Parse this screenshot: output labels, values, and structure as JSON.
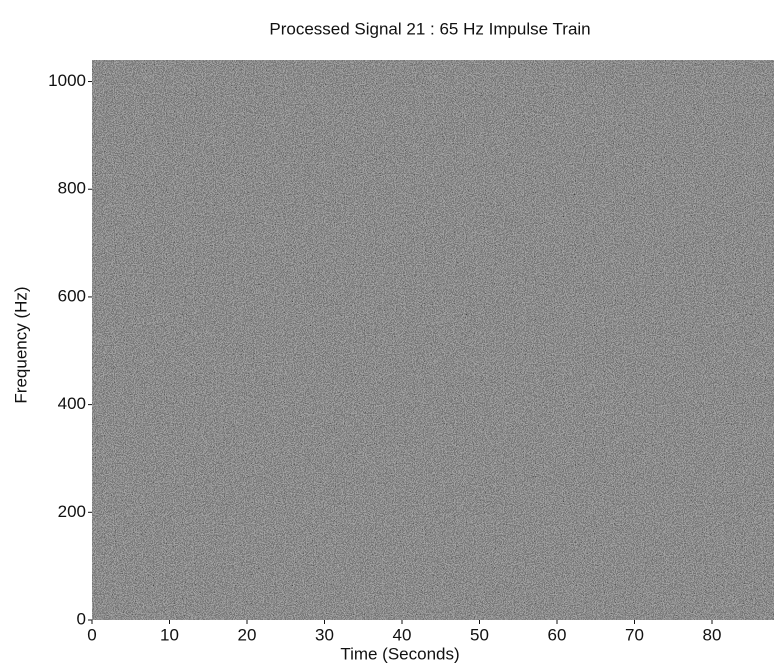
{
  "chart_data": {
    "type": "spectrogram",
    "title": "Processed Signal 21 : 65 Hz Impulse Train",
    "x_label": "Time (Seconds)",
    "y_label": "Frequency (Hz)",
    "xlim": [
      0,
      88
    ],
    "xticks": [
      0,
      10,
      20,
      30,
      40,
      50,
      60,
      70,
      80
    ],
    "ylim": [
      0,
      1040
    ],
    "yticks": [
      0,
      200,
      400,
      600,
      800,
      1000
    ],
    "color": "#3a3a3a"
  }
}
